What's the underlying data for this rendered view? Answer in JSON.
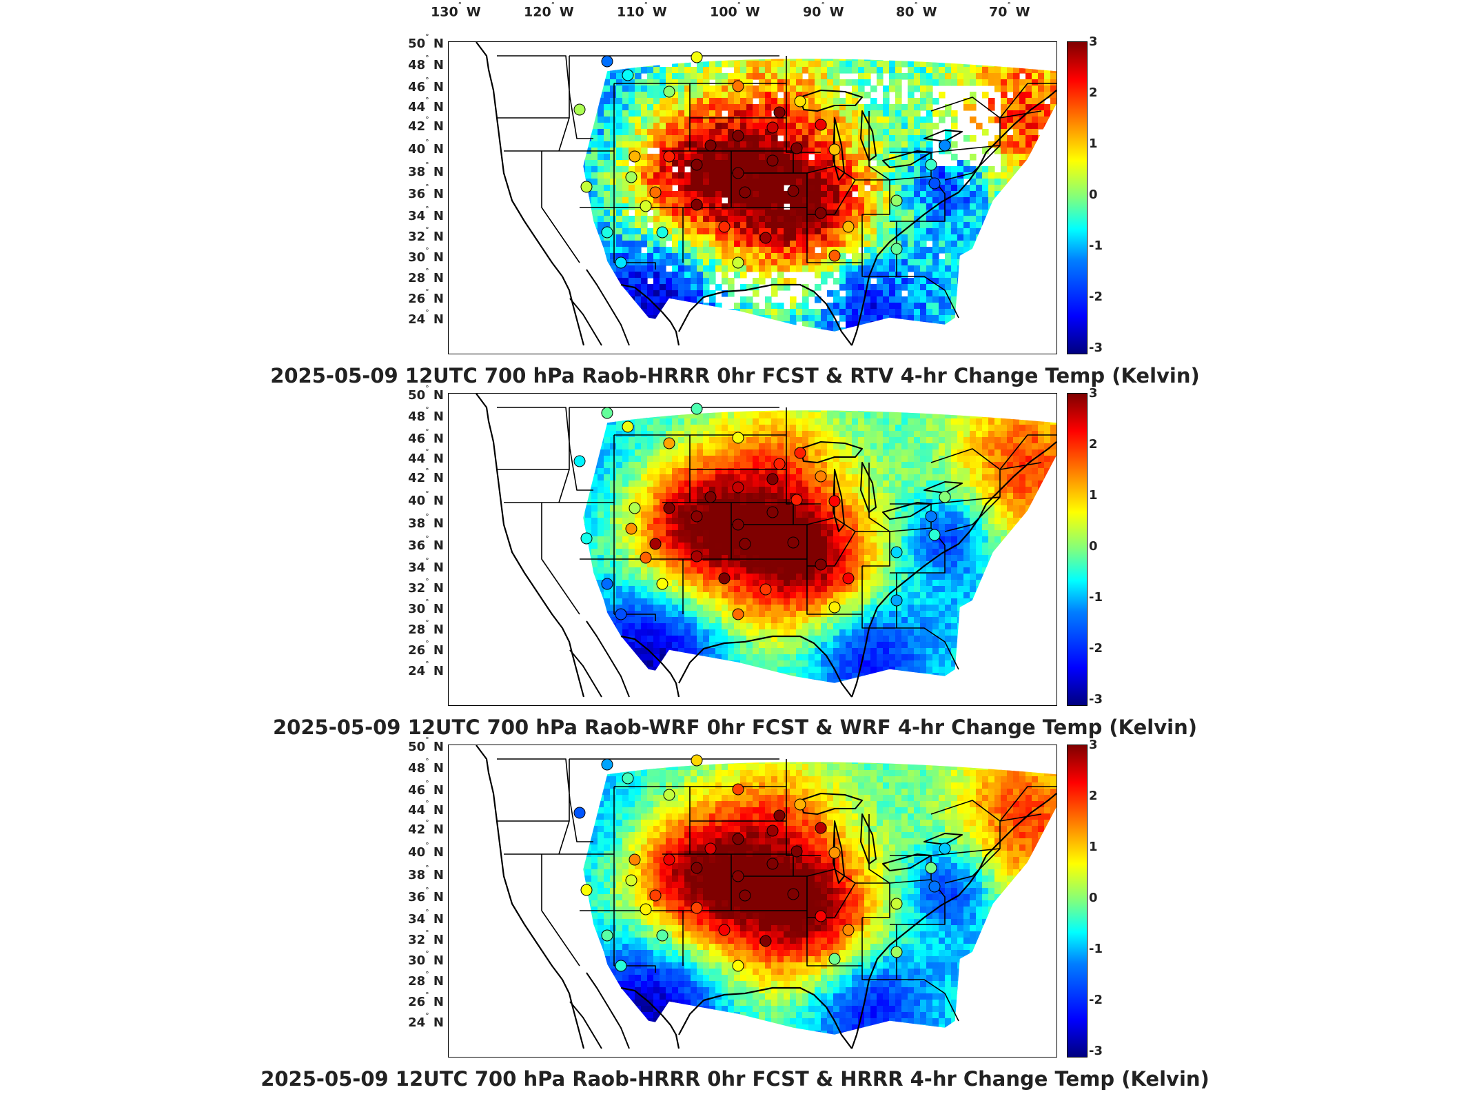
{
  "longitude_labels": [
    {
      "deg": "130",
      "hemi": "W"
    },
    {
      "deg": "120",
      "hemi": "W"
    },
    {
      "deg": "110",
      "hemi": "W"
    },
    {
      "deg": "100",
      "hemi": "W"
    },
    {
      "deg": "90",
      "hemi": "W"
    },
    {
      "deg": "80",
      "hemi": "W"
    },
    {
      "deg": "70",
      "hemi": "W"
    }
  ],
  "latitude_labels": [
    {
      "deg": "50",
      "hemi": "N"
    },
    {
      "deg": "48",
      "hemi": "N"
    },
    {
      "deg": "46",
      "hemi": "N"
    },
    {
      "deg": "44",
      "hemi": "N"
    },
    {
      "deg": "42",
      "hemi": "N"
    },
    {
      "deg": "40",
      "hemi": "N"
    },
    {
      "deg": "38",
      "hemi": "N"
    },
    {
      "deg": "36",
      "hemi": "N"
    },
    {
      "deg": "34",
      "hemi": "N"
    },
    {
      "deg": "32",
      "hemi": "N"
    },
    {
      "deg": "30",
      "hemi": "N"
    },
    {
      "deg": "28",
      "hemi": "N"
    },
    {
      "deg": "26",
      "hemi": "N"
    },
    {
      "deg": "24",
      "hemi": "N"
    }
  ],
  "degree_symbol": "°",
  "colorbar_ticks": [
    "3",
    "2",
    "1",
    "0",
    "-1",
    "-2",
    "-3"
  ],
  "colors": {
    "scale_low": "#00007f",
    "scale_mid": "#7fff7f",
    "scale_high": "#7f0000",
    "state_lines": "#000000",
    "missing_data": "#ffffff"
  },
  "panels": [
    {
      "title": "2025-05-09 12UTC 700 hPa Raob-HRRR 0hr FCST & RTV 4-hr Change Temp (Kelvin)",
      "field": "RTV 4-hr change",
      "has_missing_patches": true
    },
    {
      "title": "2025-05-09 12UTC 700 hPa Raob-WRF 0hr FCST & WRF 4-hr Change Temp (Kelvin)",
      "field": "WRF 4-hr change",
      "has_missing_patches": false
    },
    {
      "title": "2025-05-09 12UTC 700 hPa Raob-HRRR 0hr FCST & HRRR 4-hr Change Temp (Kelvin)",
      "field": "HRRR 4-hr change",
      "has_missing_patches": false
    }
  ]
}
